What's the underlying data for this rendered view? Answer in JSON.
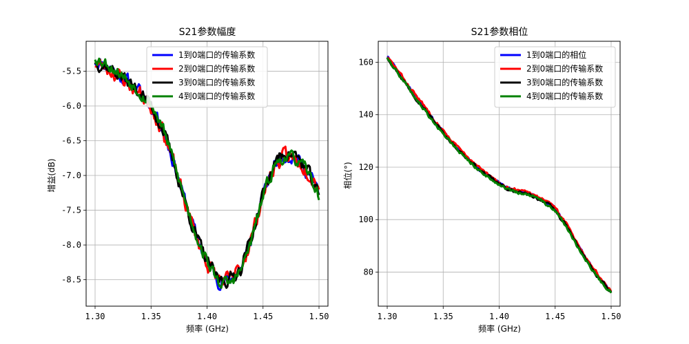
{
  "chart_data": [
    {
      "type": "line",
      "title": "S21参数幅度",
      "xlabel": "频率 (GHz)",
      "ylabel": "增益(dB)",
      "xlim": [
        1.292,
        1.508
      ],
      "ylim": [
        -8.88,
        -5.07
      ],
      "xticks": [
        1.3,
        1.35,
        1.4,
        1.45,
        1.5
      ],
      "xtick_labels": [
        "1.30",
        "1.35",
        "1.40",
        "1.45",
        "1.50"
      ],
      "yticks": [
        -8.5,
        -8.0,
        -7.5,
        -7.0,
        -6.5,
        -6.0,
        -5.5
      ],
      "ytick_labels": [
        "-8.5",
        "-8.0",
        "-7.5",
        "-7.0",
        "-6.5",
        "-6.0",
        "-5.5"
      ],
      "grid": true,
      "legend_position": "top-right",
      "x": [
        1.3,
        1.31,
        1.32,
        1.33,
        1.34,
        1.35,
        1.36,
        1.37,
        1.38,
        1.39,
        1.4,
        1.41,
        1.42,
        1.43,
        1.44,
        1.45,
        1.46,
        1.47,
        1.48,
        1.49,
        1.5
      ],
      "series": [
        {
          "name": "1到0端口的传输系数",
          "color": "#0000ff",
          "noise": 0.08,
          "seed": 11,
          "values": [
            -5.35,
            -5.4,
            -5.52,
            -5.66,
            -5.8,
            -5.98,
            -6.3,
            -6.8,
            -7.35,
            -7.85,
            -8.25,
            -8.5,
            -8.52,
            -8.35,
            -7.9,
            -7.3,
            -6.85,
            -6.7,
            -6.75,
            -6.95,
            -7.25
          ]
        },
        {
          "name": "2到0端口的传输系数",
          "color": "#ff0000",
          "noise": 0.09,
          "seed": 23,
          "values": [
            -5.38,
            -5.45,
            -5.55,
            -5.68,
            -5.82,
            -6.0,
            -6.32,
            -6.82,
            -7.37,
            -7.86,
            -8.26,
            -8.49,
            -8.51,
            -8.34,
            -7.88,
            -7.28,
            -6.86,
            -6.72,
            -6.78,
            -6.92,
            -7.15
          ]
        },
        {
          "name": "3到0端口的传输系数",
          "color": "#000000",
          "noise": 0.08,
          "seed": 37,
          "values": [
            -5.36,
            -5.42,
            -5.53,
            -5.66,
            -5.8,
            -5.99,
            -6.31,
            -6.81,
            -7.36,
            -7.86,
            -8.25,
            -8.5,
            -8.5,
            -8.33,
            -7.87,
            -7.27,
            -6.83,
            -6.66,
            -6.72,
            -6.95,
            -7.3
          ]
        },
        {
          "name": "4到0端口的传输系数",
          "color": "#008000",
          "noise": 0.07,
          "seed": 53,
          "values": [
            -5.3,
            -5.38,
            -5.5,
            -5.64,
            -5.79,
            -5.97,
            -6.29,
            -6.79,
            -7.34,
            -7.84,
            -8.24,
            -8.52,
            -8.56,
            -8.38,
            -7.92,
            -7.3,
            -6.86,
            -6.72,
            -6.78,
            -6.95,
            -7.3
          ]
        }
      ]
    },
    {
      "type": "line",
      "title": "S21参数相位",
      "xlabel": "频率 (GHz)",
      "ylabel": "相位(°)",
      "xlim": [
        1.292,
        1.508
      ],
      "ylim": [
        67,
        168
      ],
      "xticks": [
        1.3,
        1.35,
        1.4,
        1.45,
        1.5
      ],
      "xtick_labels": [
        "1.30",
        "1.35",
        "1.40",
        "1.45",
        "1.50"
      ],
      "yticks": [
        80,
        100,
        120,
        140,
        160
      ],
      "ytick_labels": [
        "80",
        "100",
        "120",
        "140",
        "160"
      ],
      "grid": true,
      "legend_position": "top-right",
      "x": [
        1.3,
        1.31,
        1.32,
        1.33,
        1.34,
        1.35,
        1.36,
        1.37,
        1.38,
        1.39,
        1.4,
        1.41,
        1.42,
        1.43,
        1.44,
        1.45,
        1.46,
        1.47,
        1.48,
        1.49,
        1.5
      ],
      "series": [
        {
          "name": "1到0端口的相位",
          "color": "#0000ff",
          "noise": 0.5,
          "seed": 71,
          "values": [
            162.5,
            156.0,
            150.0,
            144.5,
            139.0,
            133.5,
            128.5,
            124.0,
            120.0,
            117.0,
            114.0,
            111.5,
            110.5,
            109.5,
            107.5,
            104.0,
            98.0,
            90.5,
            83.5,
            77.5,
            72.5
          ]
        },
        {
          "name": "2到0端口的传输系数",
          "color": "#ff0000",
          "noise": 0.5,
          "seed": 83,
          "values": [
            162.0,
            156.5,
            150.5,
            145.0,
            139.5,
            134.0,
            129.0,
            124.5,
            120.5,
            117.0,
            114.0,
            111.8,
            110.8,
            109.8,
            107.8,
            104.3,
            98.5,
            91.0,
            84.0,
            78.0,
            73.0
          ]
        },
        {
          "name": "3到0端口的传输系数",
          "color": "#000000",
          "noise": 0.5,
          "seed": 97,
          "values": [
            162.0,
            155.8,
            149.8,
            144.0,
            138.5,
            133.0,
            128.2,
            123.8,
            119.8,
            116.5,
            113.5,
            111.2,
            110.0,
            109.0,
            107.0,
            103.5,
            97.5,
            90.0,
            83.0,
            77.0,
            72.0
          ]
        },
        {
          "name": "4到0端口的传输系数",
          "color": "#008000",
          "noise": 0.5,
          "seed": 109,
          "values": [
            162.0,
            155.5,
            149.5,
            143.5,
            138.0,
            132.8,
            128.0,
            123.5,
            119.5,
            116.3,
            113.3,
            111.0,
            109.8,
            108.8,
            106.8,
            103.2,
            97.2,
            89.8,
            82.8,
            76.8,
            72.2
          ]
        }
      ]
    }
  ]
}
